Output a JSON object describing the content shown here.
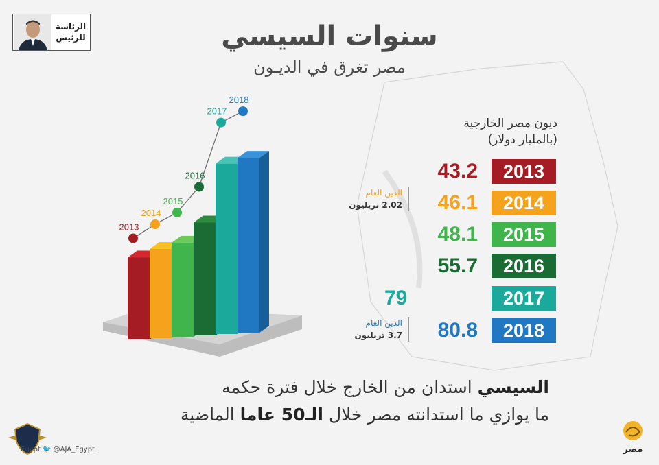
{
  "header": {
    "badge_line1": "الرئاسة",
    "badge_line2": "للرئيس",
    "title": "سنوات السيسي",
    "subtitle": "مصر تغرق في الديـون"
  },
  "table": {
    "heading_line1": "ديون مصر الخارجية",
    "heading_line2": "(بالمليار دولار)"
  },
  "notes": [
    {
      "line1": "الدين العام",
      "line2": "2.02 تريليون",
      "color": "#f5a21c"
    },
    {
      "line1": "الدين العام",
      "line2": "3.7 تريليون",
      "color": "#1f78c1"
    }
  ],
  "bottom_text": {
    "l1_bold": "السيسي",
    "l1_rest": "استدان من الخارج خلال فترة حكمه",
    "l2_part1": "ما يوازي ما استدانته مصر خلال",
    "l2_bold": "الـ50 عاما",
    "l2_part2": "الماضية"
  },
  "footer": {
    "handles": "Egypt  🐦 @AJA_Egypt"
  },
  "logo": {
    "text": "مصر"
  },
  "chart_data": {
    "type": "bar",
    "title": "سنوات السيسي",
    "subtitle": "مصر تغرق في الديـون",
    "ylabel": "ديون مصر الخارجية (بالمليار دولار)",
    "categories": [
      "2013",
      "2014",
      "2015",
      "2016",
      "2017",
      "2018"
    ],
    "values": [
      "43.2",
      "46.1",
      "48.1",
      "55.7",
      "79",
      "80.8"
    ],
    "numeric_values": [
      43.2,
      46.1,
      48.1,
      55.7,
      79,
      80.8
    ],
    "colors": [
      "#a51c24",
      "#f5a21c",
      "#3fb54c",
      "#1a6b34",
      "#1aa99b",
      "#1f78c1"
    ],
    "side_colors": [
      "#7d151b",
      "#d4861a",
      "#2f8f3b",
      "#124f26",
      "#148278",
      "#185e98"
    ],
    "top_colors": [
      "#d6262f",
      "#f9c022",
      "#6dc95a",
      "#2e8b3c",
      "#49c4b4",
      "#3a93d8"
    ]
  }
}
